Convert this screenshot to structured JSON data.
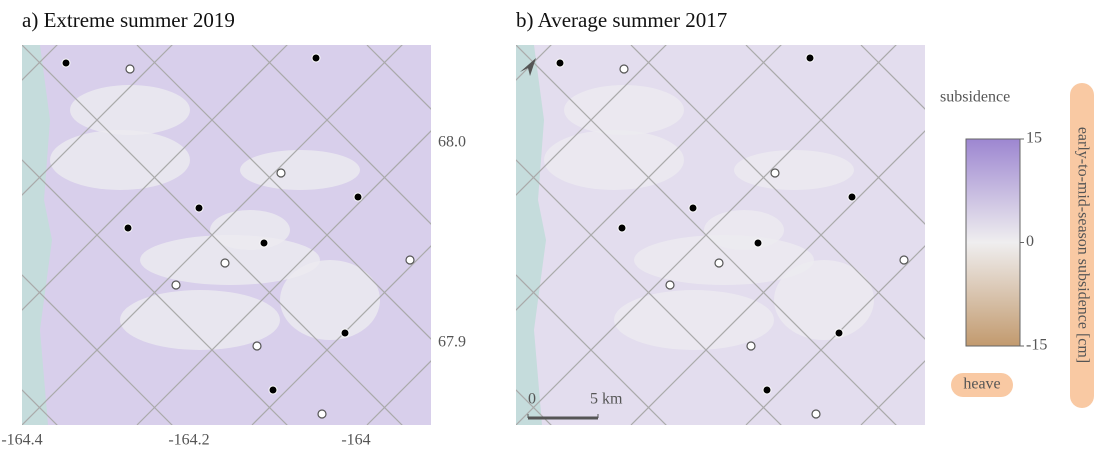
{
  "panels": [
    {
      "title": "a) Extreme summer 2019"
    },
    {
      "title": "b) Average summer 2017"
    }
  ],
  "lon_ticks": [
    -164.4,
    -164.2,
    -164.0
  ],
  "lat_ticks": [
    {
      "value": 68.0,
      "label": "68.0"
    },
    {
      "value": 67.9,
      "label": "67.9"
    }
  ],
  "colorbar": {
    "label": "early-to-mid-season subsidence [cm]",
    "top_label": "subsidence",
    "bottom_label": "heave",
    "lim": [
      -15,
      15
    ],
    "ticks": [
      15,
      0,
      -15
    ]
  },
  "scalebar": {
    "ticks": [
      0,
      {
        "value": 5,
        "label": "5 km"
      }
    ]
  }
}
